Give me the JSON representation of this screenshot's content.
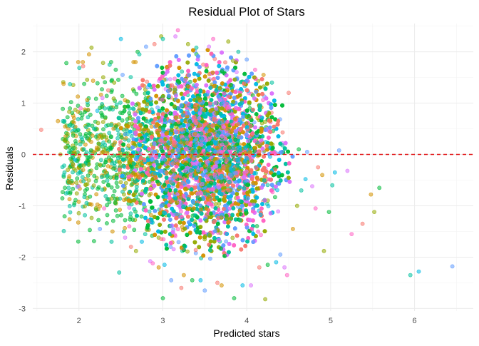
{
  "chart_data": {
    "type": "scatter",
    "title": "Residual Plot of Stars",
    "xlabel": "Predicted stars",
    "ylabel": "Residuals",
    "xlim": [
      1.45,
      6.7
    ],
    "ylim": [
      -3.05,
      2.55
    ],
    "x_ticks": [
      2,
      3,
      4,
      5,
      6
    ],
    "x_tick_labels": [
      "2",
      "3",
      "4",
      "5",
      "6"
    ],
    "y_ticks": [
      -3,
      -2,
      -1,
      0,
      1,
      2
    ],
    "y_tick_labels": [
      "-3",
      "-2",
      "-1",
      "0",
      "1",
      "2"
    ],
    "grid": true,
    "legend": "none",
    "reference_line": {
      "y": 0,
      "style": "dashed",
      "color": "#e31a1c"
    },
    "point_alpha": 0.55,
    "series_colors": [
      "#F8766D",
      "#D39200",
      "#93AA00",
      "#00BA38",
      "#00C19F",
      "#00B9E3",
      "#619CFF",
      "#DB72FB",
      "#FF61C3"
    ],
    "points": [
      [
        1.55,
        0.48
      ],
      [
        1.75,
        0.65
      ],
      [
        1.78,
        0.0
      ],
      [
        1.85,
        1.78
      ],
      [
        1.92,
        -0.02
      ],
      [
        1.95,
        -0.1
      ],
      [
        1.98,
        -0.63
      ],
      [
        2.0,
        -0.62
      ],
      [
        2.02,
        0.9
      ],
      [
        2.05,
        1.72
      ],
      [
        2.12,
        1.95
      ],
      [
        2.15,
        2.08
      ],
      [
        2.1,
        -0.12
      ],
      [
        2.18,
        0.5
      ],
      [
        2.22,
        0.85
      ],
      [
        2.25,
        -1.45
      ],
      [
        2.28,
        1.1
      ],
      [
        2.3,
        -1.05
      ],
      [
        2.35,
        1.25
      ],
      [
        2.4,
        -1.5
      ],
      [
        2.42,
        1.4
      ],
      [
        2.45,
        -0.45
      ],
      [
        2.48,
        -2.3
      ],
      [
        2.5,
        2.25
      ],
      [
        2.52,
        1.55
      ],
      [
        2.55,
        -1.62
      ],
      [
        2.6,
        -1.4
      ],
      [
        2.62,
        -1.8
      ],
      [
        2.65,
        1.8
      ],
      [
        2.68,
        -1.88
      ],
      [
        2.7,
        2.0
      ],
      [
        2.72,
        1.95
      ],
      [
        2.75,
        -1.7
      ],
      [
        2.8,
        2.1
      ],
      [
        2.85,
        -2.08
      ],
      [
        2.88,
        -2.12
      ],
      [
        2.9,
        2.15
      ],
      [
        2.95,
        -2.2
      ],
      [
        2.98,
        2.3
      ],
      [
        3.0,
        -2.8
      ],
      [
        3.0,
        2.25
      ],
      [
        3.02,
        -2.15
      ],
      [
        3.1,
        -2.45
      ],
      [
        3.15,
        2.3
      ],
      [
        3.18,
        2.42
      ],
      [
        3.22,
        -2.6
      ],
      [
        3.25,
        -2.35
      ],
      [
        3.3,
        2.15
      ],
      [
        3.35,
        -2.45
      ],
      [
        3.4,
        2.08
      ],
      [
        3.45,
        -2.45
      ],
      [
        3.5,
        -2.65
      ],
      [
        3.55,
        2.1
      ],
      [
        3.6,
        2.25
      ],
      [
        3.65,
        -2.5
      ],
      [
        3.7,
        -2.55
      ],
      [
        3.78,
        2.2
      ],
      [
        3.85,
        -2.8
      ],
      [
        3.9,
        2.0
      ],
      [
        3.95,
        -2.55
      ],
      [
        4.0,
        1.85
      ],
      [
        4.05,
        -2.55
      ],
      [
        4.1,
        1.65
      ],
      [
        4.15,
        -2.2
      ],
      [
        4.2,
        1.55
      ],
      [
        4.22,
        -2.82
      ],
      [
        4.25,
        -2.15
      ],
      [
        4.3,
        1.4
      ],
      [
        4.35,
        -2.1
      ],
      [
        4.4,
        -1.95
      ],
      [
        4.45,
        -2.2
      ],
      [
        4.48,
        -2.35
      ],
      [
        4.5,
        1.2
      ],
      [
        4.55,
        -1.45
      ],
      [
        4.6,
        -1.0
      ],
      [
        4.62,
        0.1
      ],
      [
        4.65,
        -0.7
      ],
      [
        4.7,
        -0.48
      ],
      [
        4.72,
        0.05
      ],
      [
        4.78,
        -0.62
      ],
      [
        4.82,
        -1.05
      ],
      [
        4.85,
        -0.25
      ],
      [
        4.9,
        -0.4
      ],
      [
        4.92,
        -1.88
      ],
      [
        4.98,
        -1.12
      ],
      [
        5.02,
        -0.6
      ],
      [
        5.05,
        -0.35
      ],
      [
        5.1,
        0.08
      ],
      [
        5.2,
        -0.32
      ],
      [
        5.25,
        -1.55
      ],
      [
        5.38,
        -1.35
      ],
      [
        5.48,
        -0.78
      ],
      [
        5.52,
        -1.12
      ],
      [
        5.58,
        -0.65
      ],
      [
        5.95,
        -2.35
      ],
      [
        6.05,
        -2.28
      ],
      [
        6.45,
        -2.18
      ]
    ],
    "dense_core": {
      "x_center": 3.5,
      "y_center": 0.0,
      "x_spread": 0.45,
      "y_spread": 0.85,
      "count": 9000
    },
    "left_tail": {
      "x_range": [
        1.8,
        2.9
      ],
      "y_center": 0.0,
      "y_spread": 0.7,
      "count": 700
    }
  }
}
